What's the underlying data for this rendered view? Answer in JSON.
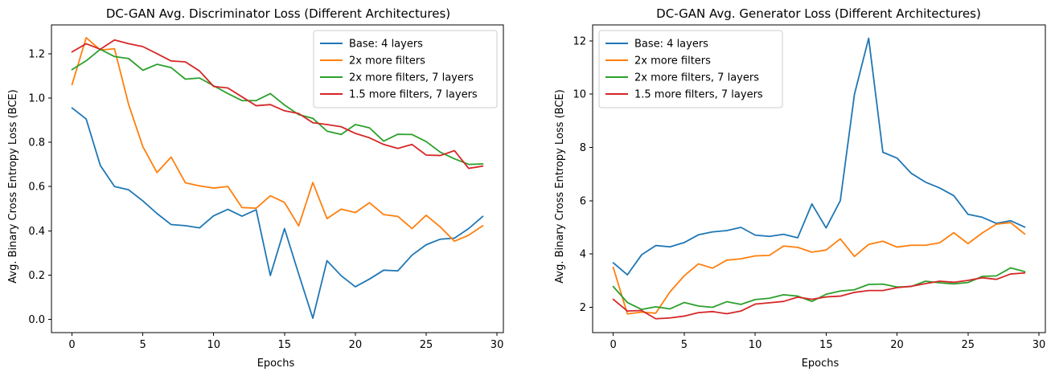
{
  "chart_data": [
    {
      "type": "line",
      "title": "DC-GAN Avg. Discriminator Loss (Different Architectures)",
      "xlabel": "Epochs",
      "ylabel": "Avg. Binary Cross Entropy Loss (BCE)",
      "xlim": [
        -1.45,
        30.45
      ],
      "ylim": [
        -0.06,
        1.33
      ],
      "xticks": [
        0,
        5,
        10,
        15,
        20,
        25,
        30
      ],
      "yticks": [
        0.0,
        0.2,
        0.4,
        0.6,
        0.8,
        1.0,
        1.2
      ],
      "ytick_decimals": 1,
      "grid": false,
      "legend": "top-right",
      "x": [
        0,
        1,
        2,
        3,
        4,
        5,
        6,
        7,
        8,
        9,
        10,
        11,
        12,
        13,
        14,
        15,
        16,
        17,
        18,
        19,
        20,
        21,
        22,
        23,
        24,
        25,
        26,
        27,
        28,
        29
      ],
      "series": [
        {
          "name": "Base: 4 layers",
          "color": "#1f77b4",
          "values": [
            0.955,
            0.905,
            0.695,
            0.6,
            0.585,
            0.535,
            0.478,
            0.428,
            0.423,
            0.413,
            0.468,
            0.497,
            0.466,
            0.495,
            0.198,
            0.41,
            0.205,
            0.005,
            0.265,
            0.197,
            0.147,
            0.182,
            0.222,
            0.219,
            0.29,
            0.337,
            0.362,
            0.367,
            0.41,
            0.465
          ]
        },
        {
          "name": "2x more filters",
          "color": "#ff7f0e",
          "values": [
            1.06,
            1.272,
            1.217,
            1.222,
            0.97,
            0.78,
            0.663,
            0.733,
            0.617,
            0.603,
            0.593,
            0.6,
            0.505,
            0.502,
            0.558,
            0.528,
            0.422,
            0.618,
            0.455,
            0.498,
            0.482,
            0.527,
            0.473,
            0.465,
            0.41,
            0.47,
            0.417,
            0.353,
            0.38,
            0.423
          ]
        },
        {
          "name": "2x more filters, 7 layers",
          "color": "#2ca02c",
          "values": [
            1.128,
            1.168,
            1.22,
            1.187,
            1.178,
            1.125,
            1.152,
            1.137,
            1.085,
            1.09,
            1.055,
            1.02,
            0.988,
            0.988,
            1.02,
            0.968,
            0.925,
            0.908,
            0.85,
            0.835,
            0.88,
            0.865,
            0.805,
            0.836,
            0.835,
            0.803,
            0.755,
            0.725,
            0.7,
            0.702
          ]
        },
        {
          "name": "1.5 more filters, 7 layers",
          "color": "#d62728",
          "values": [
            1.208,
            1.245,
            1.22,
            1.262,
            1.245,
            1.232,
            1.2,
            1.167,
            1.163,
            1.122,
            1.052,
            1.045,
            1.005,
            0.965,
            0.97,
            0.942,
            0.93,
            0.888,
            0.88,
            0.87,
            0.84,
            0.82,
            0.79,
            0.772,
            0.79,
            0.742,
            0.74,
            0.762,
            0.682,
            0.692
          ]
        }
      ]
    },
    {
      "type": "line",
      "title": "DC-GAN Avg. Generator Loss (Different Architectures)",
      "xlabel": "Epochs",
      "ylabel": "Avg. Binary Cross Entropy Loss (BCE)",
      "xlim": [
        -1.45,
        30.45
      ],
      "ylim": [
        1.05,
        12.6
      ],
      "xticks": [
        0,
        5,
        10,
        15,
        20,
        25,
        30
      ],
      "yticks": [
        2,
        4,
        6,
        8,
        10,
        12
      ],
      "ytick_decimals": 0,
      "grid": false,
      "legend": "top-left",
      "x": [
        0,
        1,
        2,
        3,
        4,
        5,
        6,
        7,
        8,
        9,
        10,
        11,
        12,
        13,
        14,
        15,
        16,
        17,
        18,
        19,
        20,
        21,
        22,
        23,
        24,
        25,
        26,
        27,
        28,
        29
      ],
      "series": [
        {
          "name": "Base: 4 layers",
          "color": "#1f77b4",
          "values": [
            3.67,
            3.22,
            3.97,
            4.32,
            4.27,
            4.43,
            4.72,
            4.83,
            4.88,
            5.0,
            4.71,
            4.66,
            4.74,
            4.61,
            5.88,
            4.98,
            6.0,
            10.0,
            12.1,
            7.82,
            7.6,
            7.03,
            6.7,
            6.48,
            6.19,
            5.49,
            5.38,
            5.15,
            5.25,
            5.01
          ]
        },
        {
          "name": "2x more filters",
          "color": "#ff7f0e",
          "values": [
            3.5,
            1.75,
            1.82,
            1.78,
            2.58,
            3.18,
            3.63,
            3.47,
            3.77,
            3.82,
            3.93,
            3.95,
            4.3,
            4.25,
            4.07,
            4.15,
            4.57,
            3.91,
            4.36,
            4.48,
            4.26,
            4.33,
            4.33,
            4.42,
            4.8,
            4.39,
            4.79,
            5.12,
            5.18,
            4.75
          ]
        },
        {
          "name": "2x more filters, 7 layers",
          "color": "#2ca02c",
          "values": [
            2.78,
            2.18,
            1.92,
            2.02,
            1.94,
            2.18,
            2.05,
            2.0,
            2.21,
            2.11,
            2.29,
            2.34,
            2.47,
            2.42,
            2.22,
            2.49,
            2.61,
            2.66,
            2.86,
            2.87,
            2.76,
            2.78,
            2.98,
            2.92,
            2.88,
            2.93,
            3.16,
            3.18,
            3.48,
            3.34
          ]
        },
        {
          "name": "1.5 more filters, 7 layers",
          "color": "#d62728",
          "values": [
            2.3,
            1.86,
            1.88,
            1.57,
            1.6,
            1.67,
            1.8,
            1.84,
            1.76,
            1.86,
            2.12,
            2.17,
            2.22,
            2.38,
            2.3,
            2.39,
            2.42,
            2.56,
            2.63,
            2.63,
            2.74,
            2.79,
            2.89,
            2.98,
            2.94,
            3.01,
            3.11,
            3.05,
            3.25,
            3.29
          ]
        }
      ]
    }
  ]
}
